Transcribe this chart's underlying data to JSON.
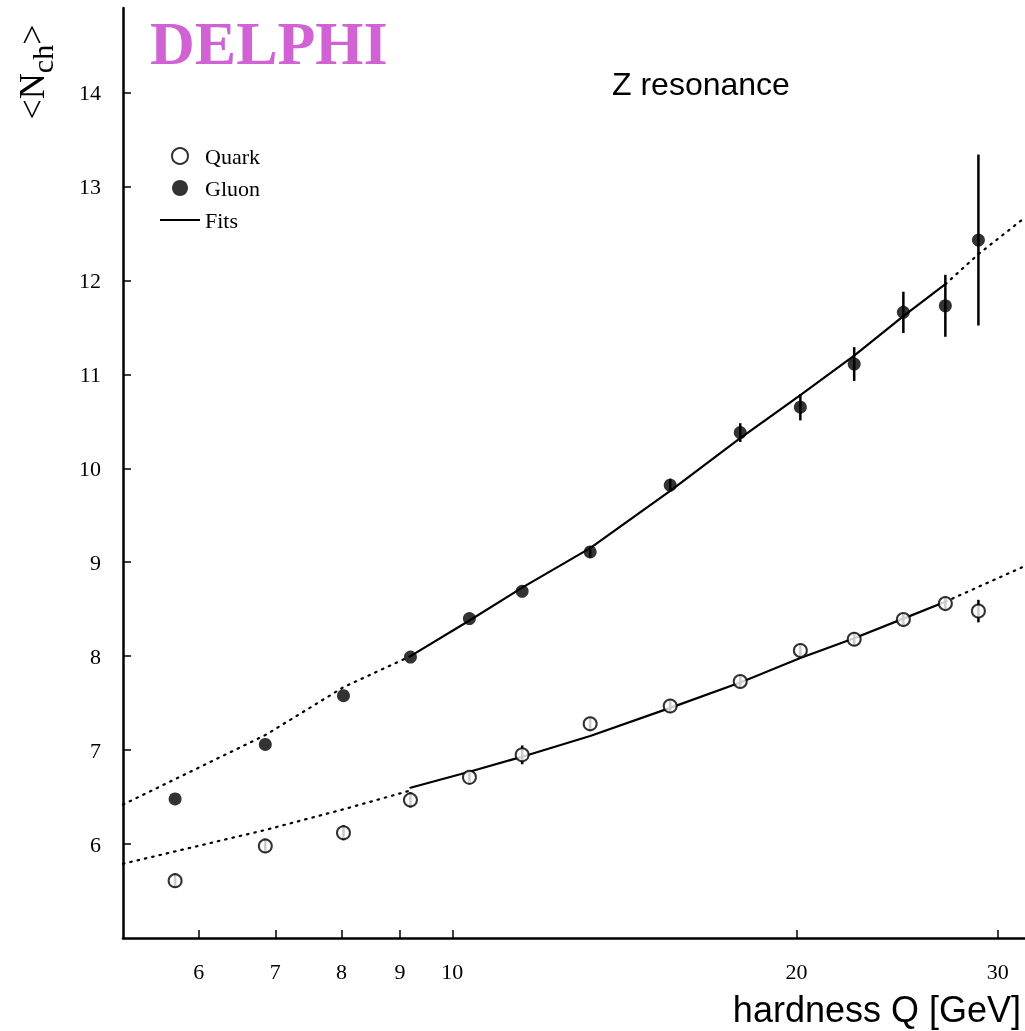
{
  "chart_data": {
    "type": "scatter",
    "xlabel": "hardness Q [GeV]",
    "ylabel": "<N$_{ch}$>",
    "annotations": [
      "DELPHI",
      "Z resonance"
    ],
    "log": "x",
    "xlim": [
      5.15,
      31.7
    ],
    "xticks": [
      6,
      7,
      8,
      9,
      10,
      20,
      30
    ],
    "ylim": [
      5,
      14.9
    ],
    "yticks": [
      6,
      7,
      8,
      9,
      10,
      11,
      12,
      13,
      14
    ],
    "grid": false,
    "legend": "top left",
    "series": [
      {
        "name": "Quark",
        "marker": "circle",
        "color": "#000000",
        "x": [
          5.72,
          6.86,
          8.03,
          9.19,
          10.35,
          11.51,
          13.2,
          15.51,
          17.86,
          20.16,
          22.47,
          24.81,
          27.0,
          28.86
        ],
        "values": [
          5.61,
          5.98,
          6.12,
          6.47,
          6.71,
          6.95,
          7.28,
          7.47,
          7.73,
          8.06,
          8.18,
          8.39,
          8.56,
          8.48
        ],
        "errors": [
          0.07,
          0.07,
          0.08,
          0.08,
          0.07,
          0.1,
          0.07,
          0.07,
          0.07,
          0.07,
          0.07,
          0.07,
          0.07,
          0.12
        ]
      },
      {
        "name": "Gluon",
        "marker": "circle",
        "color": "#000000",
        "x": [
          5.72,
          6.86,
          8.03,
          9.19,
          10.35,
          11.51,
          13.2,
          15.51,
          17.86,
          20.16,
          22.47,
          24.81,
          27.0,
          28.86
        ],
        "values": [
          6.48,
          7.06,
          7.58,
          7.99,
          8.4,
          8.69,
          9.11,
          9.82,
          10.38,
          10.65,
          11.11,
          11.66,
          11.73,
          12.43
        ],
        "errors": [
          null,
          null,
          null,
          null,
          null,
          null,
          0.06,
          0.07,
          0.1,
          0.14,
          0.18,
          0.22,
          0.33,
          [
            11.52,
            13.34
          ]
        ]
      },
      {
        "name": "Fits",
        "type": "line",
        "marker": "none",
        "color": "#000000",
        "line_style": "solid",
        "x": [
          9.19,
          10.35,
          11.51,
          13.2,
          15.51,
          17.86,
          20.16,
          22.47,
          24.81,
          27.0
        ],
        "values": [
          8.0,
          8.38,
          8.73,
          9.15,
          9.76,
          10.32,
          10.78,
          11.2,
          11.62,
          11.96
        ]
      },
      {
        "type": "line",
        "marker": "none",
        "color": "#000000",
        "line_style": "solid",
        "x": [
          9.19,
          10.35,
          11.51,
          13.2,
          15.51,
          17.86,
          20.16,
          22.47,
          24.81,
          27.0
        ],
        "values": [
          6.6,
          6.77,
          6.93,
          7.15,
          7.45,
          7.72,
          7.98,
          8.19,
          8.4,
          8.58
        ]
      },
      {
        "type": "line",
        "marker": "none",
        "color": "#000000",
        "line_style": "dotted",
        "x": [
          5.15,
          6.86,
          8.03,
          9.19
        ],
        "values": [
          6.42,
          7.16,
          7.67,
          8.0
        ]
      },
      {
        "type": "line",
        "marker": "none",
        "color": "#000000",
        "line_style": "dotted",
        "x": [
          27.0,
          28.86,
          31.7
        ],
        "values": [
          11.96,
          12.28,
          12.67
        ]
      },
      {
        "type": "line",
        "marker": "none",
        "color": "#000000",
        "line_style": "dotted",
        "x": [
          5.15,
          6.86,
          8.03,
          9.19
        ],
        "values": [
          5.79,
          6.15,
          6.37,
          6.57
        ]
      },
      {
        "type": "line",
        "marker": "none",
        "color": "#000000",
        "line_style": "dotted",
        "x": [
          27.0,
          31.7
        ],
        "values": [
          8.58,
          8.96
        ]
      }
    ]
  }
}
